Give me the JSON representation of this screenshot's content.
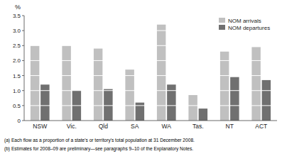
{
  "chart_data": {
    "type": "bar",
    "categories": [
      "NSW",
      "Vic.",
      "Qld",
      "SA",
      "WA",
      "Tas.",
      "NT",
      "ACT"
    ],
    "series": [
      {
        "name": "NOM arrivals",
        "color": "#c0c0c0",
        "values": [
          2.5,
          2.5,
          2.4,
          1.7,
          3.2,
          0.85,
          2.3,
          2.45
        ]
      },
      {
        "name": "NOM departures",
        "color": "#707070",
        "values": [
          1.2,
          1.0,
          1.05,
          0.6,
          1.2,
          0.4,
          1.45,
          1.35
        ]
      }
    ],
    "y_label": "%",
    "ylim": [
      0,
      3.5
    ],
    "yticks": [
      0,
      0.5,
      {
        "value": 1.0,
        "label": "1.0"
      },
      1.5,
      {
        "value": 2.0,
        "label": "2.0"
      },
      2.5,
      {
        "value": 3.0,
        "label": "3.0"
      },
      3.5
    ],
    "legend": "upper right",
    "annotations": [
      "(a) Each flow as a proportion of a state's or territory's total population at 31 December 2008.",
      "(b) Estimates for 2008–09 are preliminary—see paragraphs 9–10 of the Explanatory Notes."
    ]
  }
}
